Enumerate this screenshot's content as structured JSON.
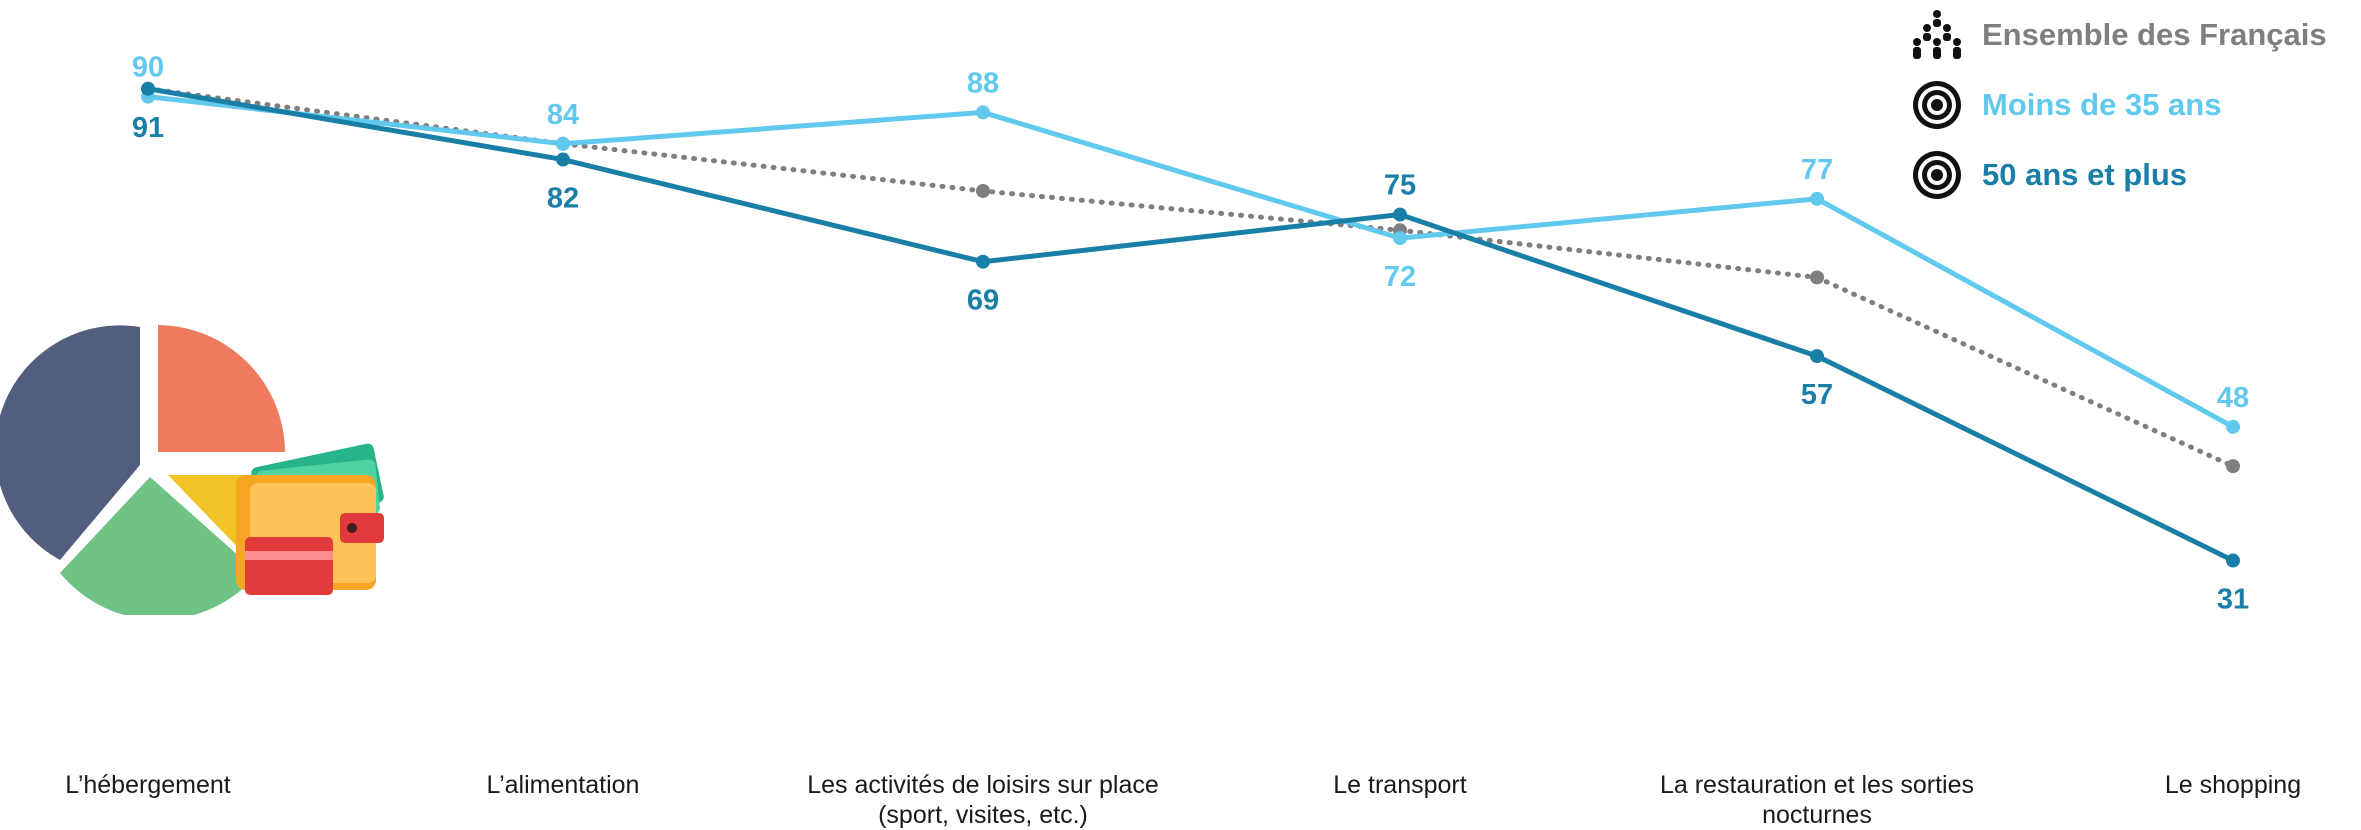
{
  "chart_data": {
    "type": "line",
    "title": "",
    "xlabel": "",
    "ylabel": "",
    "categories": [
      "L’hébergement",
      "L’alimentation",
      "Les activités de loisirs sur place (sport, visites, etc.)",
      "Le transport",
      "La restauration et les sorties nocturnes",
      "Le shopping"
    ],
    "ylim": [
      20,
      100
    ],
    "grid": false,
    "legend_position": "top-right",
    "series": [
      {
        "name": "Ensemble des Français",
        "values": [
          91,
          84,
          78,
          73,
          67,
          43
        ],
        "color": "#7f7f7f",
        "style": "dotted",
        "show_labels": false,
        "icon": "people-group-icon"
      },
      {
        "name": "Moins de 35 ans",
        "values": [
          90,
          84,
          88,
          72,
          77,
          48
        ],
        "color": "#62c9ee",
        "style": "solid",
        "show_labels": true,
        "icon": "target-icon"
      },
      {
        "name": "50 ans et plus",
        "values": [
          91,
          82,
          69,
          75,
          57,
          31
        ],
        "color": "#1a7fa6",
        "style": "solid",
        "show_labels": true,
        "icon": "target-icon"
      }
    ],
    "data_labels": [
      {
        "series": 1,
        "index": 0,
        "text": "90",
        "position": "above"
      },
      {
        "series": 2,
        "index": 0,
        "text": "91",
        "position": "below"
      },
      {
        "series": 1,
        "index": 1,
        "text": "84",
        "position": "above"
      },
      {
        "series": 2,
        "index": 1,
        "text": "82",
        "position": "below"
      },
      {
        "series": 1,
        "index": 2,
        "text": "88",
        "position": "above"
      },
      {
        "series": 2,
        "index": 2,
        "text": "69",
        "position": "below"
      },
      {
        "series": 2,
        "index": 3,
        "text": "75",
        "position": "above"
      },
      {
        "series": 1,
        "index": 3,
        "text": "72",
        "position": "below"
      },
      {
        "series": 1,
        "index": 4,
        "text": "77",
        "position": "above"
      },
      {
        "series": 2,
        "index": 4,
        "text": "57",
        "position": "below"
      },
      {
        "series": 1,
        "index": 5,
        "text": "48",
        "position": "above"
      },
      {
        "series": 2,
        "index": 5,
        "text": "31",
        "position": "below"
      }
    ]
  },
  "illustration": {
    "icon": "budget-pie-wallet-icon"
  }
}
